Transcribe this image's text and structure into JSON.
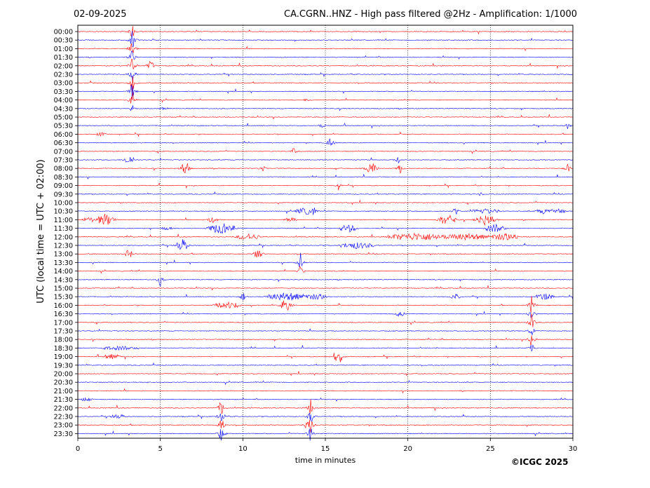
{
  "header": {
    "date": "02-09-2025",
    "title": "CA.CGRN..HNZ - High pass filtered @2Hz - Amplification: 1/1000"
  },
  "footer": {
    "copyright": "©ICGC 2025"
  },
  "colors": {
    "trace_a": "#ff0000",
    "trace_b": "#0000ff",
    "axis": "#000000",
    "grid": "#000000"
  },
  "chart_data": {
    "type": "line",
    "title": "CA.CGRN..HNZ - High pass filtered @2Hz - Amplification: 1/1000",
    "xlabel": "time in minutes",
    "ylabel": "UTC (local time = UTC + 02:00)",
    "xlim": [
      0,
      30
    ],
    "x_ticks": [
      "0",
      "5",
      "10",
      "15",
      "20",
      "25",
      "30"
    ],
    "x_grid": [
      5,
      10,
      15,
      20,
      25
    ],
    "row_labels": [
      "00:00",
      "00:30",
      "01:00",
      "01:30",
      "02:00",
      "02:30",
      "03:00",
      "03:30",
      "04:00",
      "04:30",
      "05:00",
      "05:30",
      "06:00",
      "06:30",
      "07:00",
      "07:30",
      "08:00",
      "08:30",
      "09:00",
      "09:30",
      "10:00",
      "10:30",
      "11:00",
      "11:30",
      "12:00",
      "12:30",
      "13:00",
      "13:30",
      "14:00",
      "14:30",
      "15:00",
      "15:30",
      "16:00",
      "16:30",
      "17:00",
      "17:30",
      "18:00",
      "18:30",
      "19:00",
      "19:30",
      "20:00",
      "20:30",
      "21:00",
      "21:30",
      "22:00",
      "22:30",
      "23:00",
      "23:30"
    ],
    "row_colors": [
      "trace_a",
      "trace_b"
    ],
    "events": [
      {
        "row": 0,
        "t": 3.3,
        "amp": 12,
        "span": 0.1
      },
      {
        "row": 1,
        "t": 3.3,
        "amp": 14,
        "span": 0.1
      },
      {
        "row": 2,
        "t": 3.3,
        "amp": 14,
        "span": 0.1
      },
      {
        "row": 3,
        "t": 3.3,
        "amp": 14,
        "span": 0.1
      },
      {
        "row": 4,
        "t": 3.3,
        "amp": 14,
        "span": 0.1
      },
      {
        "row": 4,
        "t": 4.4,
        "amp": 7,
        "span": 0.2
      },
      {
        "row": 5,
        "t": 3.3,
        "amp": 14,
        "span": 0.1
      },
      {
        "row": 6,
        "t": 3.3,
        "amp": 14,
        "span": 0.1
      },
      {
        "row": 7,
        "t": 3.3,
        "amp": 14,
        "span": 0.1
      },
      {
        "row": 8,
        "t": 3.3,
        "amp": 14,
        "span": 0.1
      },
      {
        "row": 8,
        "t": 13.9,
        "amp": 2,
        "span": 0.3
      },
      {
        "row": 9,
        "t": 3.3,
        "amp": 6,
        "span": 0.1
      },
      {
        "row": 9,
        "t": 5.2,
        "amp": 2,
        "span": 0.3
      },
      {
        "row": 11,
        "t": 14.8,
        "amp": 3,
        "span": 0.2
      },
      {
        "row": 11,
        "t": 29.7,
        "amp": 6,
        "span": 0.1
      },
      {
        "row": 12,
        "t": 1.4,
        "amp": 3,
        "span": 0.3
      },
      {
        "row": 13,
        "t": 15.3,
        "amp": 12,
        "span": 0.1
      },
      {
        "row": 14,
        "t": 13.1,
        "amp": 8,
        "span": 0.1
      },
      {
        "row": 15,
        "t": 3.1,
        "amp": 7,
        "span": 0.3
      },
      {
        "row": 15,
        "t": 19.4,
        "amp": 6,
        "span": 0.1
      },
      {
        "row": 16,
        "t": 6.5,
        "amp": 12,
        "span": 0.2
      },
      {
        "row": 16,
        "t": 11.2,
        "amp": 7,
        "span": 0.1
      },
      {
        "row": 16,
        "t": 17.8,
        "amp": 9,
        "span": 0.3
      },
      {
        "row": 16,
        "t": 19.5,
        "amp": 9,
        "span": 0.1
      },
      {
        "row": 16,
        "t": 29.7,
        "amp": 9,
        "span": 0.1
      },
      {
        "row": 18,
        "t": 15.8,
        "amp": 9,
        "span": 0.1
      },
      {
        "row": 19,
        "t": 24.4,
        "amp": 3,
        "span": 0.1
      },
      {
        "row": 21,
        "t": 13.8,
        "amp": 5,
        "span": 0.6
      },
      {
        "row": 21,
        "t": 14.3,
        "amp": 9,
        "span": 0.1
      },
      {
        "row": 21,
        "t": 22.9,
        "amp": 5,
        "span": 0.2
      },
      {
        "row": 21,
        "t": 24.7,
        "amp": 4,
        "span": 0.8
      },
      {
        "row": 21,
        "t": 28.2,
        "amp": 4,
        "span": 0.4
      },
      {
        "row": 21,
        "t": 29.0,
        "amp": 4,
        "span": 0.5
      },
      {
        "row": 22,
        "t": 0.7,
        "amp": 4,
        "span": 0.4
      },
      {
        "row": 22,
        "t": 1.7,
        "amp": 9,
        "span": 0.5
      },
      {
        "row": 22,
        "t": 8.2,
        "amp": 5,
        "span": 0.3
      },
      {
        "row": 22,
        "t": 12.9,
        "amp": 3,
        "span": 0.4
      },
      {
        "row": 22,
        "t": 22.4,
        "amp": 8,
        "span": 0.5
      },
      {
        "row": 22,
        "t": 24.7,
        "amp": 8,
        "span": 0.6
      },
      {
        "row": 23,
        "t": 5.4,
        "amp": 3,
        "span": 0.3
      },
      {
        "row": 23,
        "t": 8.7,
        "amp": 8,
        "span": 0.8
      },
      {
        "row": 23,
        "t": 16.4,
        "amp": 6,
        "span": 0.5
      },
      {
        "row": 23,
        "t": 25.3,
        "amp": 6,
        "span": 0.6
      },
      {
        "row": 24,
        "t": 10.3,
        "amp": 5,
        "span": 0.7
      },
      {
        "row": 24,
        "t": 20.6,
        "amp": 6,
        "span": 1.8
      },
      {
        "row": 24,
        "t": 23.6,
        "amp": 5,
        "span": 1.3
      },
      {
        "row": 24,
        "t": 25.9,
        "amp": 6,
        "span": 0.8
      },
      {
        "row": 25,
        "t": 6.3,
        "amp": 10,
        "span": 0.3
      },
      {
        "row": 25,
        "t": 16.9,
        "amp": 5,
        "span": 1.0
      },
      {
        "row": 26,
        "t": 3.1,
        "amp": 7,
        "span": 0.2
      },
      {
        "row": 26,
        "t": 10.9,
        "amp": 6,
        "span": 0.3
      },
      {
        "row": 27,
        "t": 13.5,
        "amp": 14,
        "span": 0.1
      },
      {
        "row": 28,
        "t": 13.5,
        "amp": 10,
        "span": 0.1
      },
      {
        "row": 29,
        "t": 5.0,
        "amp": 10,
        "span": 0.1
      },
      {
        "row": 31,
        "t": 10.0,
        "amp": 8,
        "span": 0.1
      },
      {
        "row": 31,
        "t": 12.7,
        "amp": 6,
        "span": 1.2
      },
      {
        "row": 31,
        "t": 14.5,
        "amp": 5,
        "span": 0.6
      },
      {
        "row": 31,
        "t": 22.9,
        "amp": 5,
        "span": 0.3
      },
      {
        "row": 31,
        "t": 28.3,
        "amp": 5,
        "span": 0.5
      },
      {
        "row": 32,
        "t": 9.1,
        "amp": 5,
        "span": 0.8
      },
      {
        "row": 32,
        "t": 12.6,
        "amp": 9,
        "span": 0.3
      },
      {
        "row": 32,
        "t": 27.5,
        "amp": 14,
        "span": 0.1
      },
      {
        "row": 33,
        "t": 19.5,
        "amp": 4,
        "span": 0.3
      },
      {
        "row": 33,
        "t": 27.5,
        "amp": 14,
        "span": 0.1
      },
      {
        "row": 34,
        "t": 27.5,
        "amp": 14,
        "span": 0.1
      },
      {
        "row": 35,
        "t": 27.5,
        "amp": 14,
        "span": 0.1
      },
      {
        "row": 36,
        "t": 27.5,
        "amp": 14,
        "span": 0.1
      },
      {
        "row": 37,
        "t": 2.5,
        "amp": 3,
        "span": 1.2
      },
      {
        "row": 37,
        "t": 27.5,
        "amp": 10,
        "span": 0.1
      },
      {
        "row": 38,
        "t": 2.1,
        "amp": 4,
        "span": 0.5
      },
      {
        "row": 38,
        "t": 15.6,
        "amp": 10,
        "span": 0.1
      },
      {
        "row": 38,
        "t": 15.9,
        "amp": 10,
        "span": 0.1
      },
      {
        "row": 43,
        "t": 0.5,
        "amp": 3,
        "span": 0.4
      },
      {
        "row": 44,
        "t": 8.7,
        "amp": 14,
        "span": 0.1
      },
      {
        "row": 44,
        "t": 14.1,
        "amp": 14,
        "span": 0.1
      },
      {
        "row": 45,
        "t": 2.4,
        "amp": 4,
        "span": 0.4
      },
      {
        "row": 45,
        "t": 8.7,
        "amp": 14,
        "span": 0.1
      },
      {
        "row": 45,
        "t": 14.1,
        "amp": 14,
        "span": 0.1
      },
      {
        "row": 46,
        "t": 8.7,
        "amp": 14,
        "span": 0.1
      },
      {
        "row": 46,
        "t": 14.1,
        "amp": 14,
        "span": 0.1
      },
      {
        "row": 46,
        "t": 13.9,
        "amp": 7,
        "span": 0.2
      },
      {
        "row": 47,
        "t": 8.7,
        "amp": 14,
        "span": 0.1
      },
      {
        "row": 47,
        "t": 14.1,
        "amp": 12,
        "span": 0.1
      }
    ]
  }
}
